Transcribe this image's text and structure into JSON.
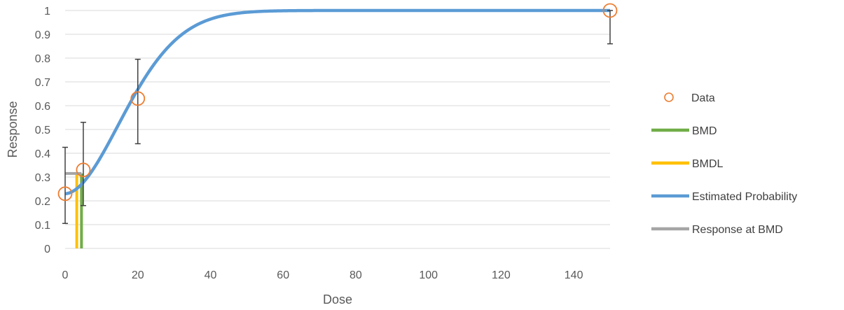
{
  "chart_data": {
    "type": "scatter",
    "xlabel": "Dose",
    "ylabel": "Response",
    "xlim": [
      0,
      150
    ],
    "ylim": [
      0,
      1
    ],
    "x_ticks": [
      0,
      20,
      40,
      60,
      80,
      100,
      120,
      140
    ],
    "y_ticks": [
      0,
      0.1,
      0.2,
      0.3,
      0.4,
      0.5,
      0.6,
      0.7,
      0.8,
      0.9,
      1
    ],
    "grid": true,
    "legend_position": "right",
    "data_points": [
      {
        "x": 0,
        "y": 0.23,
        "lower": 0.105,
        "upper": 0.425
      },
      {
        "x": 5,
        "y": 0.33,
        "lower": 0.18,
        "upper": 0.53
      },
      {
        "x": 20,
        "y": 0.63,
        "lower": 0.44,
        "upper": 0.795
      },
      {
        "x": 150,
        "y": 1.0,
        "lower": 0.86,
        "upper": 1.0
      }
    ],
    "bmd": 4.5,
    "bmdl": 3.2,
    "response_at_bmd": 0.315,
    "estimated_probability": {
      "background": 0.23,
      "slope": 0.0032,
      "power": 1.86
    },
    "colors": {
      "data": "#ed7d31",
      "bmd": "#70ad47",
      "bmdl": "#ffc000",
      "estimated": "#5b9bd5",
      "response_at_bmd": "#a5a5a5",
      "error_bar": "#404040"
    },
    "legend": [
      {
        "key": "data",
        "label": "Data",
        "marker": "circle"
      },
      {
        "key": "bmd",
        "label": "BMD",
        "marker": "line"
      },
      {
        "key": "bmdl",
        "label": "BMDL",
        "marker": "line"
      },
      {
        "key": "estimated",
        "label": "Estimated Probability",
        "marker": "line"
      },
      {
        "key": "response_at_bmd",
        "label": "Response at BMD",
        "marker": "line"
      }
    ]
  }
}
